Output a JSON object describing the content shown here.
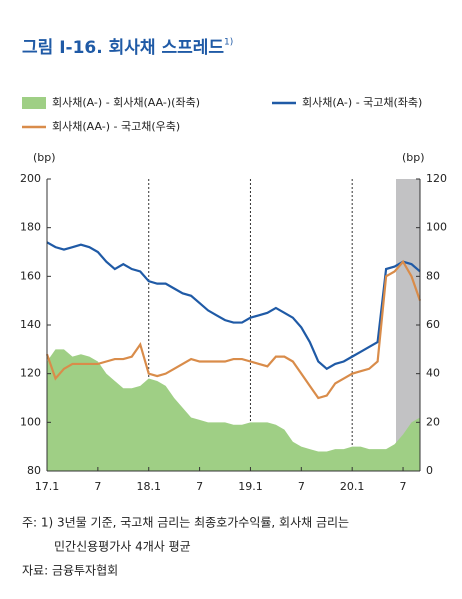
{
  "chart_data": {
    "type": "line",
    "title": "그림 I-16. 회사채 스프레드",
    "title_note": "1)",
    "y_unit": "(bp)",
    "y2_unit": "(bp)",
    "categories": [
      "17.1",
      null,
      null,
      null,
      null,
      null,
      "7",
      null,
      null,
      null,
      null,
      null,
      "18.1",
      null,
      null,
      null,
      null,
      null,
      "7",
      null,
      null,
      null,
      null,
      null,
      "19.1",
      null,
      null,
      null,
      null,
      null,
      "7",
      null,
      null,
      null,
      null,
      null,
      "20.1",
      null,
      null,
      null,
      null,
      null,
      "7",
      null,
      null
    ],
    "series": [
      {
        "name": "회사채(A-) - 회사채(AA-)(좌축)",
        "type": "area",
        "color": "#9fcf85",
        "values": [
          125,
          130,
          130,
          127,
          128,
          127,
          125,
          120,
          117,
          114,
          114,
          115,
          118,
          117,
          115,
          110,
          106,
          102,
          101,
          100,
          100,
          100,
          99,
          99,
          100,
          100,
          100,
          99,
          97,
          92,
          90,
          89,
          88,
          88,
          89,
          89,
          90,
          90,
          89,
          89,
          89,
          91,
          95,
          100,
          102
        ]
      },
      {
        "name": "회사채(A-) - 국고채(좌축)",
        "type": "line",
        "color": "#1f5aa6",
        "values": [
          174,
          172,
          171,
          172,
          173,
          172,
          170,
          166,
          163,
          165,
          163,
          162,
          158,
          157,
          157,
          155,
          153,
          152,
          149,
          146,
          144,
          142,
          141,
          141,
          143,
          144,
          145,
          147,
          145,
          143,
          139,
          133,
          125,
          122,
          124,
          125,
          127,
          129,
          131,
          133,
          163,
          164,
          166,
          165,
          162
        ]
      },
      {
        "name": "회사채(AA-) - 국고채(우축)",
        "type": "line",
        "color": "#d98c4a",
        "axis": "y2",
        "values": [
          48,
          38,
          42,
          44,
          44,
          44,
          44,
          45,
          46,
          46,
          47,
          52,
          40,
          39,
          40,
          42,
          44,
          46,
          45,
          45,
          45,
          45,
          46,
          46,
          45,
          44,
          43,
          47,
          47,
          45,
          40,
          35,
          30,
          31,
          36,
          38,
          40,
          41,
          42,
          45,
          80,
          82,
          86,
          80,
          70
        ]
      }
    ],
    "ylim": [
      80,
      200
    ],
    "yticks": [
      80,
      100,
      120,
      140,
      160,
      180,
      200
    ],
    "y2lim": [
      0,
      120
    ],
    "y2ticks": [
      0,
      20,
      40,
      60,
      80,
      100,
      120
    ]
  },
  "notes": [
    "주: 1) 3년물 기준, 국고채 금리는 최종호가수익률, 회사채 금리는",
    "민간신용평가사 4개사 평균",
    "자료: 금융투자협회"
  ]
}
